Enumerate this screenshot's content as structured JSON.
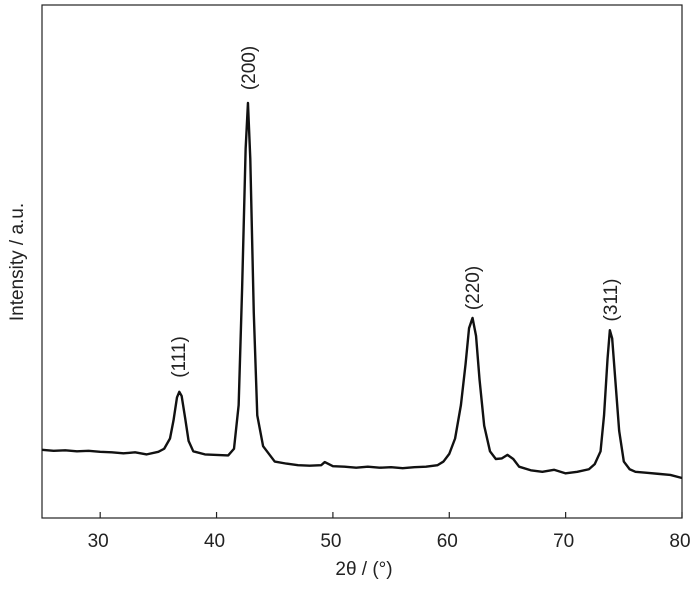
{
  "chart_data": {
    "type": "line",
    "x_label": "2θ / (°)",
    "y_label": "Intensity / a.u.",
    "annotations": [
      "(111)",
      "(200)",
      "(220)",
      "(311)"
    ],
    "color": "#111111",
    "xlim": [
      25,
      80
    ],
    "xticks": [
      30,
      40,
      50,
      60,
      70,
      80
    ],
    "ylim": [
      0,
      100
    ],
    "x": [
      25,
      26,
      27,
      28,
      29,
      30,
      31,
      32,
      33,
      34,
      35,
      35.5,
      36,
      36.3,
      36.6,
      36.8,
      37,
      37.3,
      37.6,
      38,
      39,
      40,
      41,
      41.5,
      41.9,
      42.2,
      42.5,
      42.7,
      42.9,
      43.2,
      43.5,
      44,
      45,
      46,
      47,
      48,
      49,
      49.3,
      50,
      51,
      52,
      53,
      54,
      55,
      56,
      57,
      58,
      59,
      59.5,
      60,
      60.5,
      61,
      61.4,
      61.7,
      62,
      62.3,
      62.6,
      63,
      63.5,
      64,
      64.5,
      65,
      65.5,
      66,
      67,
      68,
      69,
      70,
      71,
      72,
      72.5,
      73,
      73.3,
      73.6,
      73.8,
      74,
      74.3,
      74.6,
      75,
      75.5,
      76,
      77,
      78,
      79,
      80
    ],
    "values": [
      13.3,
      13.1,
      13.2,
      13.0,
      13.1,
      12.9,
      12.8,
      12.6,
      12.8,
      12.4,
      12.9,
      13.5,
      15.5,
      19,
      23.5,
      24.6,
      23.8,
      19.5,
      15,
      13,
      12.4,
      12.3,
      12.2,
      13.5,
      22,
      45,
      72,
      80.9,
      70,
      40,
      20,
      14,
      11,
      10.6,
      10.3,
      10.2,
      10.3,
      10.9,
      10.1,
      10,
      9.8,
      10,
      9.8,
      9.9,
      9.7,
      9.9,
      10,
      10.3,
      11,
      12.5,
      15.5,
      22,
      30,
      37,
      39,
      35.5,
      27,
      18,
      13,
      11.5,
      11.6,
      12.3,
      11.5,
      10,
      9.3,
      9,
      9.4,
      8.7,
      9,
      9.5,
      10.5,
      13,
      20,
      31,
      36.6,
      35,
      26,
      17,
      11,
      9.5,
      9,
      8.8,
      8.6,
      8.4,
      7.8
    ]
  }
}
